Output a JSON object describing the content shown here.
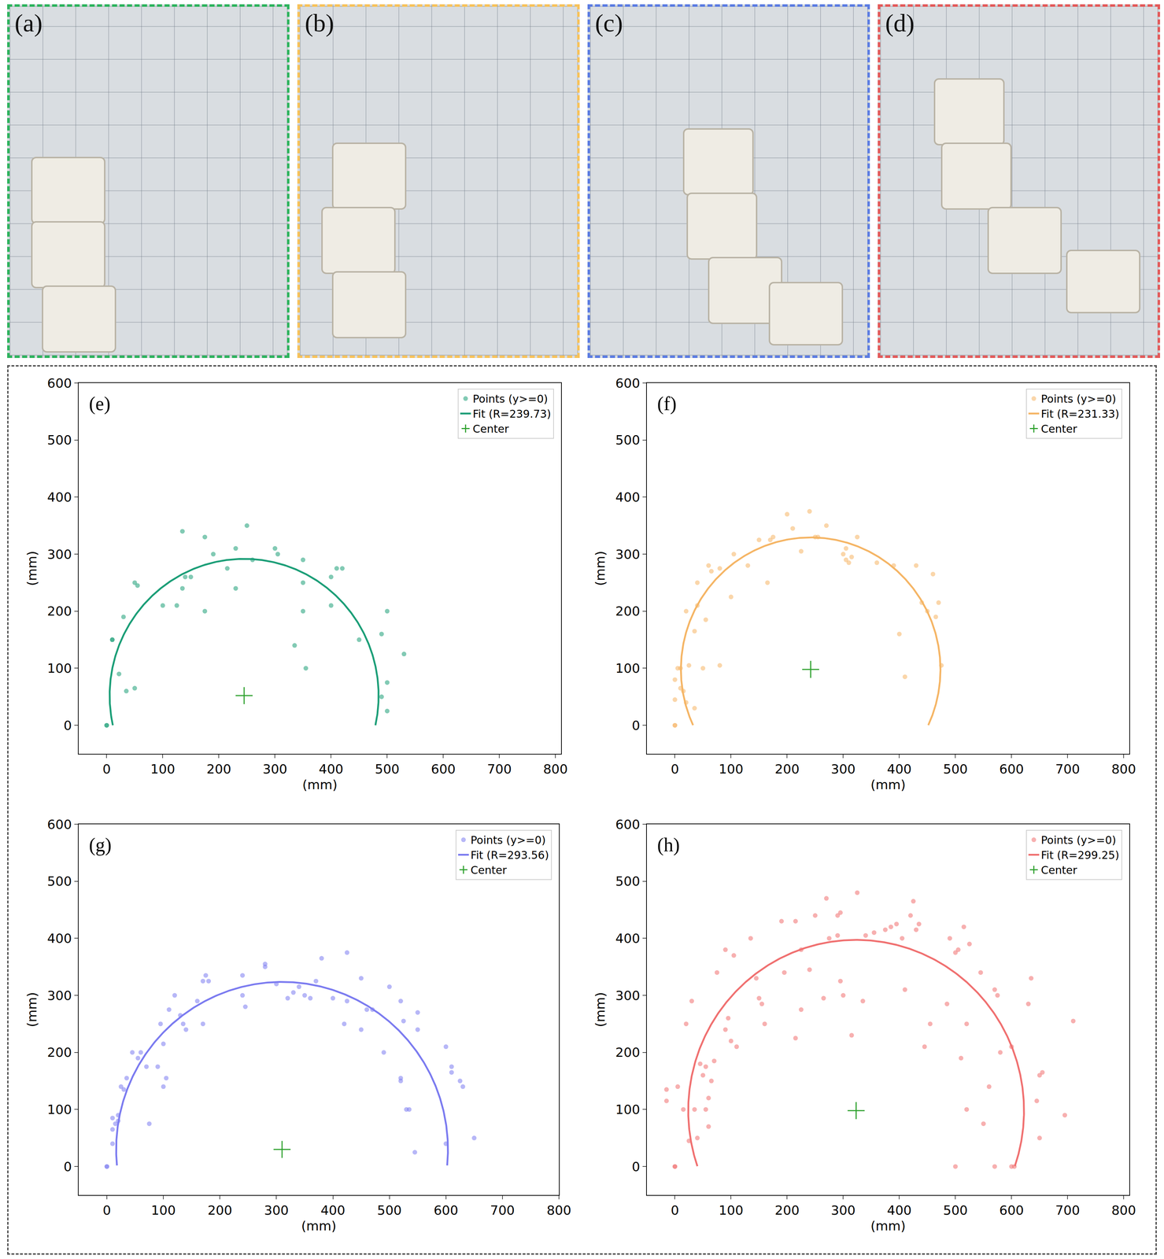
{
  "photos": [
    {
      "label": "(a)",
      "color": "#2db35d"
    },
    {
      "label": "(b)",
      "color": "#f7c25a"
    },
    {
      "label": "(c)",
      "color": "#5b7ce2"
    },
    {
      "label": "(d)",
      "color": "#e35a5a"
    }
  ],
  "chart_data": [
    {
      "type": "scatter",
      "annotations": [
        "(e)"
      ],
      "xlabel": "(mm)",
      "ylabel": "(mm)",
      "xlim": [
        -50,
        810
      ],
      "ylim": [
        -50,
        600
      ],
      "xticks": [
        0,
        100,
        200,
        300,
        400,
        500,
        600,
        700,
        800
      ],
      "yticks": [
        0,
        100,
        200,
        300,
        400,
        500,
        600
      ],
      "grid": false,
      "legend": "upper right",
      "series": [
        {
          "name": "Points (y>=0)",
          "type": "scatter",
          "marker": "circle",
          "color": "#1b9e77",
          "x": [
            0,
            0,
            10,
            10,
            22,
            30,
            35,
            50,
            55,
            50,
            100,
            125,
            135,
            135,
            140,
            150,
            175,
            175,
            190,
            215,
            230,
            230,
            250,
            260,
            300,
            305,
            335,
            350,
            350,
            350,
            355,
            400,
            400,
            410,
            420,
            450,
            490,
            490,
            500,
            500,
            500,
            530
          ],
          "y": [
            0,
            0,
            150,
            150,
            90,
            190,
            60,
            250,
            245,
            65,
            210,
            210,
            340,
            240,
            260,
            260,
            330,
            200,
            300,
            275,
            310,
            240,
            350,
            290,
            310,
            300,
            140,
            290,
            250,
            200,
            100,
            260,
            210,
            275,
            275,
            150,
            50,
            160,
            200,
            75,
            25,
            125
          ]
        },
        {
          "name": "Fit (R=239.73)",
          "type": "arc",
          "line_style": "solid",
          "color": "#1b9e77",
          "center": [
            245,
            52
          ],
          "radius": 239.73
        },
        {
          "name": "Center",
          "type": "scatter",
          "marker": "cross",
          "color": "#2ca02c",
          "x": [
            245
          ],
          "y": [
            52
          ]
        }
      ]
    },
    {
      "type": "scatter",
      "annotations": [
        "(f)"
      ],
      "xlabel": "(mm)",
      "ylabel": "(mm)",
      "xlim": [
        -50,
        810
      ],
      "ylim": [
        -50,
        600
      ],
      "xticks": [
        0,
        100,
        200,
        300,
        400,
        500,
        600,
        700,
        800
      ],
      "yticks": [
        0,
        100,
        200,
        300,
        400,
        500,
        600
      ],
      "grid": false,
      "legend": "upper right",
      "series": [
        {
          "name": "Points (y>=0)",
          "type": "scatter",
          "marker": "circle",
          "color": "#f5b565",
          "x": [
            0,
            0,
            0,
            0,
            5,
            10,
            10,
            15,
            20,
            20,
            25,
            35,
            35,
            40,
            40,
            50,
            55,
            60,
            65,
            80,
            80,
            100,
            105,
            130,
            150,
            165,
            170,
            175,
            200,
            210,
            225,
            240,
            250,
            255,
            270,
            300,
            305,
            305,
            310,
            315,
            325,
            360,
            390,
            400,
            410,
            430,
            440,
            450,
            460,
            465,
            470,
            475
          ],
          "y": [
            0,
            0,
            45,
            80,
            100,
            65,
            100,
            60,
            40,
            200,
            105,
            30,
            165,
            250,
            210,
            100,
            185,
            280,
            270,
            105,
            275,
            225,
            300,
            280,
            325,
            250,
            325,
            330,
            370,
            345,
            305,
            375,
            330,
            330,
            350,
            300,
            310,
            290,
            285,
            295,
            330,
            285,
            280,
            160,
            85,
            280,
            215,
            200,
            265,
            190,
            215,
            105
          ]
        },
        {
          "name": "Fit (R=231.33)",
          "type": "arc",
          "line_style": "solid",
          "color": "#f5b565",
          "center": [
            242,
            98
          ],
          "radius": 231.33
        },
        {
          "name": "Center",
          "type": "scatter",
          "marker": "cross",
          "color": "#2ca02c",
          "x": [
            242
          ],
          "y": [
            98
          ]
        }
      ]
    },
    {
      "type": "scatter",
      "annotations": [
        "(g)"
      ],
      "xlabel": "(mm)",
      "ylabel": "(mm)",
      "xlim": [
        -50,
        800
      ],
      "ylim": [
        -50,
        600
      ],
      "xticks": [
        0,
        100,
        200,
        300,
        400,
        500,
        600,
        700,
        800
      ],
      "yticks": [
        0,
        100,
        200,
        300,
        400,
        500,
        600
      ],
      "grid": false,
      "legend": "upper right",
      "series": [
        {
          "name": "Points (y>=0)",
          "type": "scatter",
          "marker": "circle",
          "color": "#7b7bf0",
          "x": [
            0,
            0,
            10,
            10,
            10,
            15,
            20,
            20,
            25,
            30,
            35,
            45,
            55,
            60,
            70,
            75,
            90,
            95,
            100,
            100,
            105,
            110,
            120,
            130,
            135,
            140,
            160,
            170,
            170,
            175,
            180,
            240,
            240,
            245,
            280,
            280,
            300,
            320,
            330,
            340,
            350,
            360,
            370,
            380,
            400,
            420,
            425,
            425,
            450,
            450,
            460,
            470,
            490,
            500,
            520,
            520,
            520,
            525,
            530,
            535,
            545,
            550,
            550,
            600,
            600,
            610,
            610,
            625,
            630,
            650
          ],
          "y": [
            0,
            0,
            40,
            65,
            85,
            75,
            80,
            90,
            140,
            135,
            155,
            200,
            190,
            200,
            175,
            75,
            175,
            250,
            215,
            140,
            155,
            275,
            300,
            265,
            250,
            240,
            290,
            250,
            325,
            335,
            325,
            335,
            300,
            280,
            350,
            355,
            320,
            295,
            305,
            315,
            300,
            295,
            325,
            365,
            295,
            250,
            375,
            290,
            330,
            240,
            275,
            275,
            200,
            315,
            150,
            155,
            290,
            255,
            100,
            100,
            25,
            270,
            240,
            40,
            210,
            165,
            175,
            150,
            140,
            50
          ]
        },
        {
          "name": "Fit (R=293.56)",
          "type": "arc",
          "line_style": "solid",
          "color": "#7b7bf0",
          "center": [
            310,
            30
          ],
          "radius": 293.56
        },
        {
          "name": "Center",
          "type": "scatter",
          "marker": "cross",
          "color": "#2ca02c",
          "x": [
            310
          ],
          "y": [
            30
          ]
        }
      ]
    },
    {
      "type": "scatter",
      "annotations": [
        "(h)"
      ],
      "xlabel": "(mm)",
      "ylabel": "(mm)",
      "xlim": [
        -50,
        810
      ],
      "ylim": [
        -50,
        600
      ],
      "xticks": [
        0,
        100,
        200,
        300,
        400,
        500,
        600,
        700,
        800
      ],
      "yticks": [
        0,
        100,
        200,
        300,
        400,
        500,
        600
      ],
      "grid": false,
      "legend": "upper right",
      "series": [
        {
          "name": "Points (y>=0)",
          "type": "scatter",
          "marker": "circle",
          "color": "#f07070",
          "x": [
            0,
            0,
            -15,
            -15,
            5,
            15,
            20,
            25,
            30,
            35,
            40,
            45,
            50,
            55,
            55,
            60,
            60,
            65,
            70,
            75,
            90,
            90,
            95,
            100,
            105,
            110,
            135,
            145,
            150,
            155,
            160,
            190,
            195,
            215,
            215,
            225,
            225,
            240,
            250,
            265,
            270,
            275,
            290,
            290,
            295,
            295,
            300,
            315,
            325,
            335,
            340,
            355,
            375,
            385,
            395,
            405,
            410,
            420,
            425,
            430,
            435,
            445,
            455,
            485,
            490,
            500,
            500,
            505,
            510,
            515,
            520,
            520,
            525,
            545,
            550,
            560,
            570,
            570,
            575,
            580,
            600,
            600,
            605,
            630,
            635,
            645,
            650,
            650,
            655,
            695,
            710
          ],
          "y": [
            0,
            0,
            135,
            115,
            140,
            100,
            250,
            45,
            290,
            100,
            50,
            180,
            160,
            100,
            175,
            70,
            120,
            150,
            185,
            340,
            240,
            380,
            260,
            220,
            370,
            210,
            400,
            330,
            295,
            285,
            250,
            430,
            340,
            430,
            225,
            380,
            275,
            345,
            440,
            295,
            470,
            400,
            440,
            405,
            325,
            445,
            300,
            230,
            480,
            290,
            405,
            410,
            415,
            420,
            425,
            400,
            310,
            440,
            465,
            415,
            425,
            210,
            250,
            285,
            400,
            0,
            375,
            380,
            190,
            420,
            100,
            250,
            390,
            340,
            75,
            140,
            0,
            310,
            300,
            200,
            0,
            210,
            0,
            285,
            330,
            115,
            160,
            50,
            165,
            90,
            255
          ]
        },
        {
          "name": "Fit (R=299.25)",
          "type": "arc",
          "line_style": "solid",
          "color": "#f07070",
          "center": [
            323,
            98
          ],
          "radius": 299.25
        },
        {
          "name": "Center",
          "type": "scatter",
          "marker": "cross",
          "color": "#2ca02c",
          "x": [
            323
          ],
          "y": [
            98
          ]
        }
      ]
    }
  ]
}
